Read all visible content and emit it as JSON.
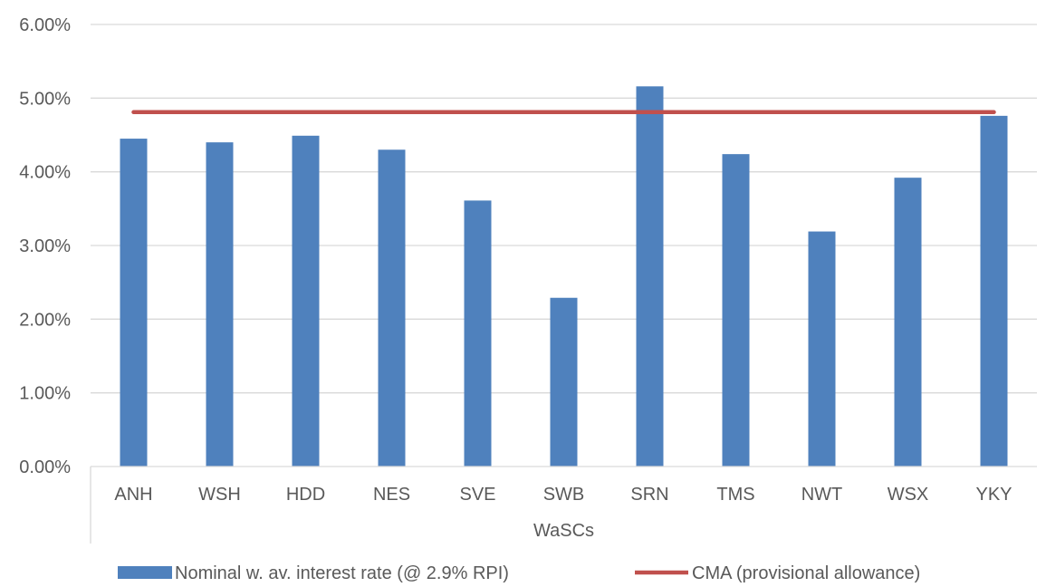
{
  "chart_data": {
    "type": "bar",
    "categories": [
      "ANH",
      "WSH",
      "HDD",
      "NES",
      "SVE",
      "SWB",
      "SRN",
      "TMS",
      "NWT",
      "WSX",
      "YKY"
    ],
    "series": [
      {
        "name": "Nominal w. av. interest rate (@ 2.9% RPI)",
        "type": "bar",
        "color": "#4F81BD",
        "values": [
          4.45,
          4.4,
          4.49,
          4.3,
          3.61,
          2.29,
          5.16,
          4.24,
          3.19,
          3.92,
          4.76
        ]
      },
      {
        "name": "CMA (provisional allowance)",
        "type": "line",
        "color": "#C0504D",
        "values": [
          4.81,
          4.81,
          4.81,
          4.81,
          4.81,
          4.81,
          4.81,
          4.81,
          4.81,
          4.81,
          4.81
        ]
      }
    ],
    "xlabel": "WaSCs",
    "ylabel": "",
    "ylim": [
      0,
      6
    ],
    "yticks": [
      0,
      1,
      2,
      3,
      4,
      5,
      6
    ],
    "ytick_labels": [
      "0.00%",
      "1.00%",
      "2.00%",
      "3.00%",
      "4.00%",
      "5.00%",
      "6.00%"
    ],
    "grid": true,
    "legend_position": "bottom"
  }
}
